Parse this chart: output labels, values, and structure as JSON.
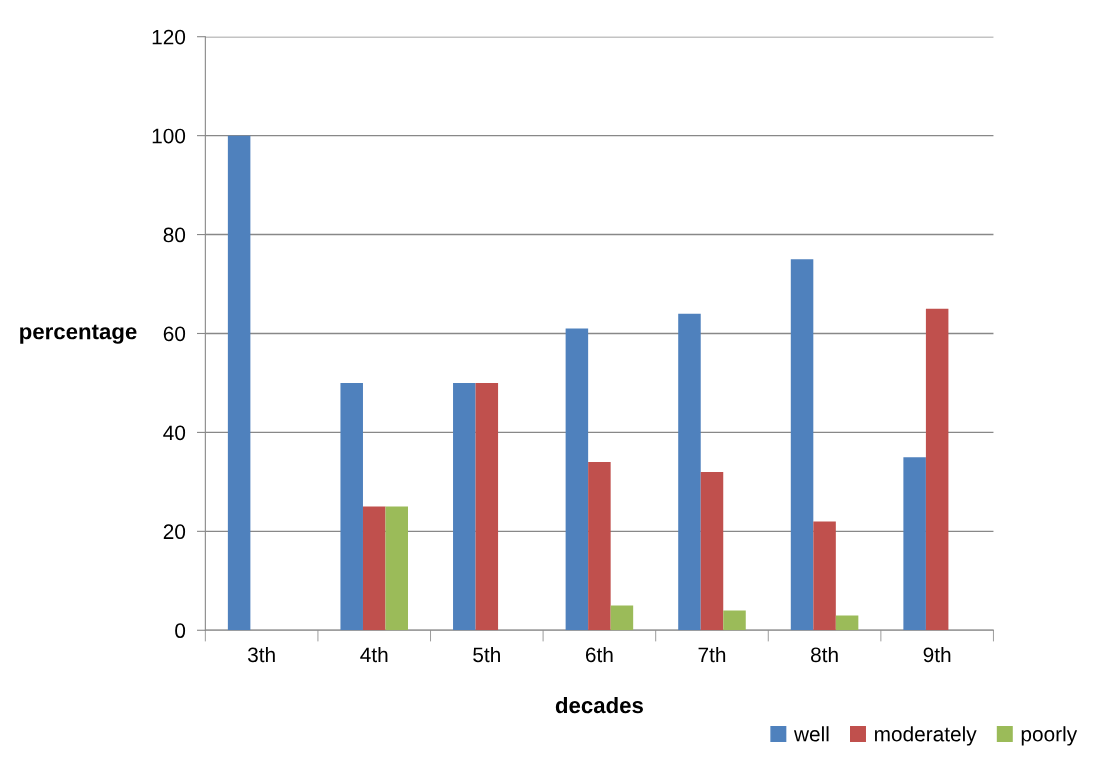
{
  "chart_data": {
    "type": "bar",
    "xlabel": "decades",
    "ylabel": "percentage",
    "categories": [
      "3th",
      "4th",
      "5th",
      "6th",
      "7th",
      "8th",
      "9th"
    ],
    "series": [
      {
        "name": "well",
        "color": "#4f81bd",
        "values": [
          100,
          50,
          50,
          61,
          64,
          75,
          35
        ]
      },
      {
        "name": "moderately",
        "color": "#c0504d",
        "values": [
          0,
          25,
          50,
          34,
          32,
          22,
          65
        ]
      },
      {
        "name": "poorly",
        "color": "#9bbb59",
        "values": [
          0,
          25,
          0,
          5,
          4,
          3,
          0
        ]
      }
    ],
    "ylim": [
      0,
      120
    ],
    "yticks": [
      0,
      20,
      40,
      60,
      80,
      100,
      120
    ],
    "grid": "y",
    "legend": "bottom right"
  }
}
